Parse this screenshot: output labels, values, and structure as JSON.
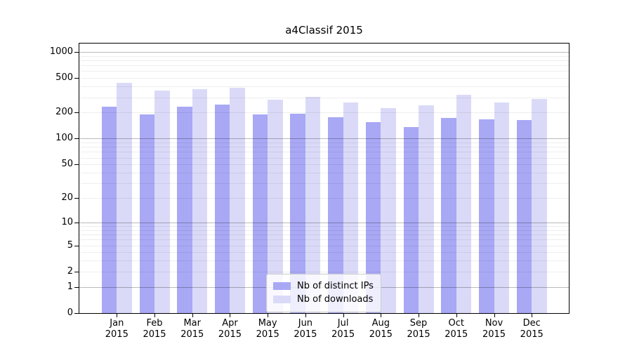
{
  "chart_data": {
    "type": "bar",
    "title": "a4Classif 2015",
    "categories": [
      "Jan",
      "Feb",
      "Mar",
      "Apr",
      "May",
      "Jun",
      "Jul",
      "Aug",
      "Sep",
      "Oct",
      "Nov",
      "Dec"
    ],
    "category_year": "2015",
    "series": [
      {
        "name": "Nb of distinct IPs",
        "color": "#a8a8f5",
        "values": [
          233,
          189,
          235,
          246,
          191,
          193,
          178,
          154,
          135,
          172,
          168,
          164
        ]
      },
      {
        "name": "Nb of downloads",
        "color": "#dadaf8",
        "values": [
          438,
          357,
          375,
          385,
          283,
          306,
          261,
          226,
          244,
          321,
          261,
          285
        ]
      }
    ],
    "yscale": "log10(value+1)",
    "yticks": [
      0,
      1,
      2,
      5,
      10,
      20,
      50,
      100,
      200,
      500,
      1000
    ],
    "ylim": [
      0,
      1230
    ],
    "xlabel": "",
    "ylabel": "",
    "grid": {
      "major_values": [
        1,
        10,
        100,
        1000
      ],
      "minor_values": "2-9 per decade",
      "visible": true
    },
    "legend_position": "lower center"
  },
  "colors": {
    "background": "#ffffff",
    "axis": "#000000",
    "bar_distinct_ips": "#a8a8f5",
    "bar_downloads": "#dadaf8",
    "legend_border": "#cccccc"
  }
}
